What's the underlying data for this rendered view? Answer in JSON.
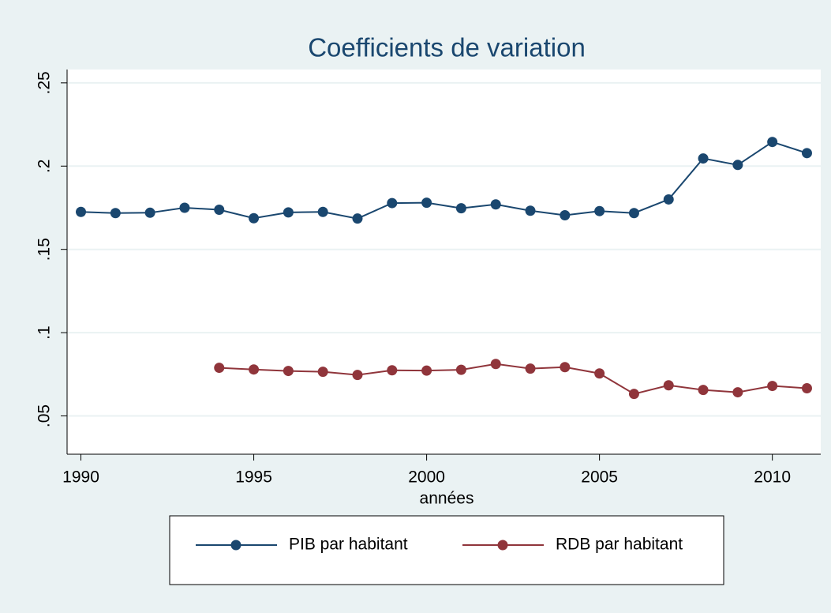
{
  "chart_data": {
    "type": "line",
    "title": "Coefficients de variation",
    "x_label": "années",
    "x": [
      1990,
      1991,
      1992,
      1993,
      1994,
      1995,
      1996,
      1997,
      1998,
      1999,
      2000,
      2001,
      2002,
      2003,
      2004,
      2005,
      2006,
      2007,
      2008,
      2009,
      2010,
      2011
    ],
    "series": [
      {
        "name": "PIB par habitant",
        "color": "#1a476f",
        "values": [
          0.1725,
          0.1718,
          0.172,
          0.175,
          0.1738,
          0.1687,
          0.1722,
          0.1725,
          0.1685,
          0.1778,
          0.178,
          0.1747,
          0.177,
          0.1732,
          0.1705,
          0.173,
          0.1718,
          0.18,
          0.2046,
          0.2007,
          0.2145,
          0.2078
        ]
      },
      {
        "name": "RDB par habitant",
        "color": "#90353b",
        "values": [
          null,
          null,
          null,
          null,
          0.0789,
          0.0779,
          0.077,
          0.0765,
          0.0746,
          0.0774,
          0.0772,
          0.0777,
          0.0812,
          0.0784,
          0.0793,
          0.0755,
          0.0632,
          0.0684,
          0.0656,
          0.0642,
          0.068,
          0.0666
        ]
      }
    ],
    "xlim": [
      1989.6,
      2011.4
    ],
    "ylim": [
      0.027,
      0.258
    ],
    "xticks": [
      1990,
      1995,
      2000,
      2005,
      2010
    ],
    "yticks": [
      {
        "value": 0.05,
        "label": ".05"
      },
      {
        "value": 0.1,
        "label": ".1"
      },
      {
        "value": 0.15,
        "label": ".15"
      },
      {
        "value": 0.2,
        "label": ".2"
      },
      {
        "value": 0.25,
        "label": ".25"
      }
    ],
    "grid": true,
    "legend": "bottom"
  }
}
